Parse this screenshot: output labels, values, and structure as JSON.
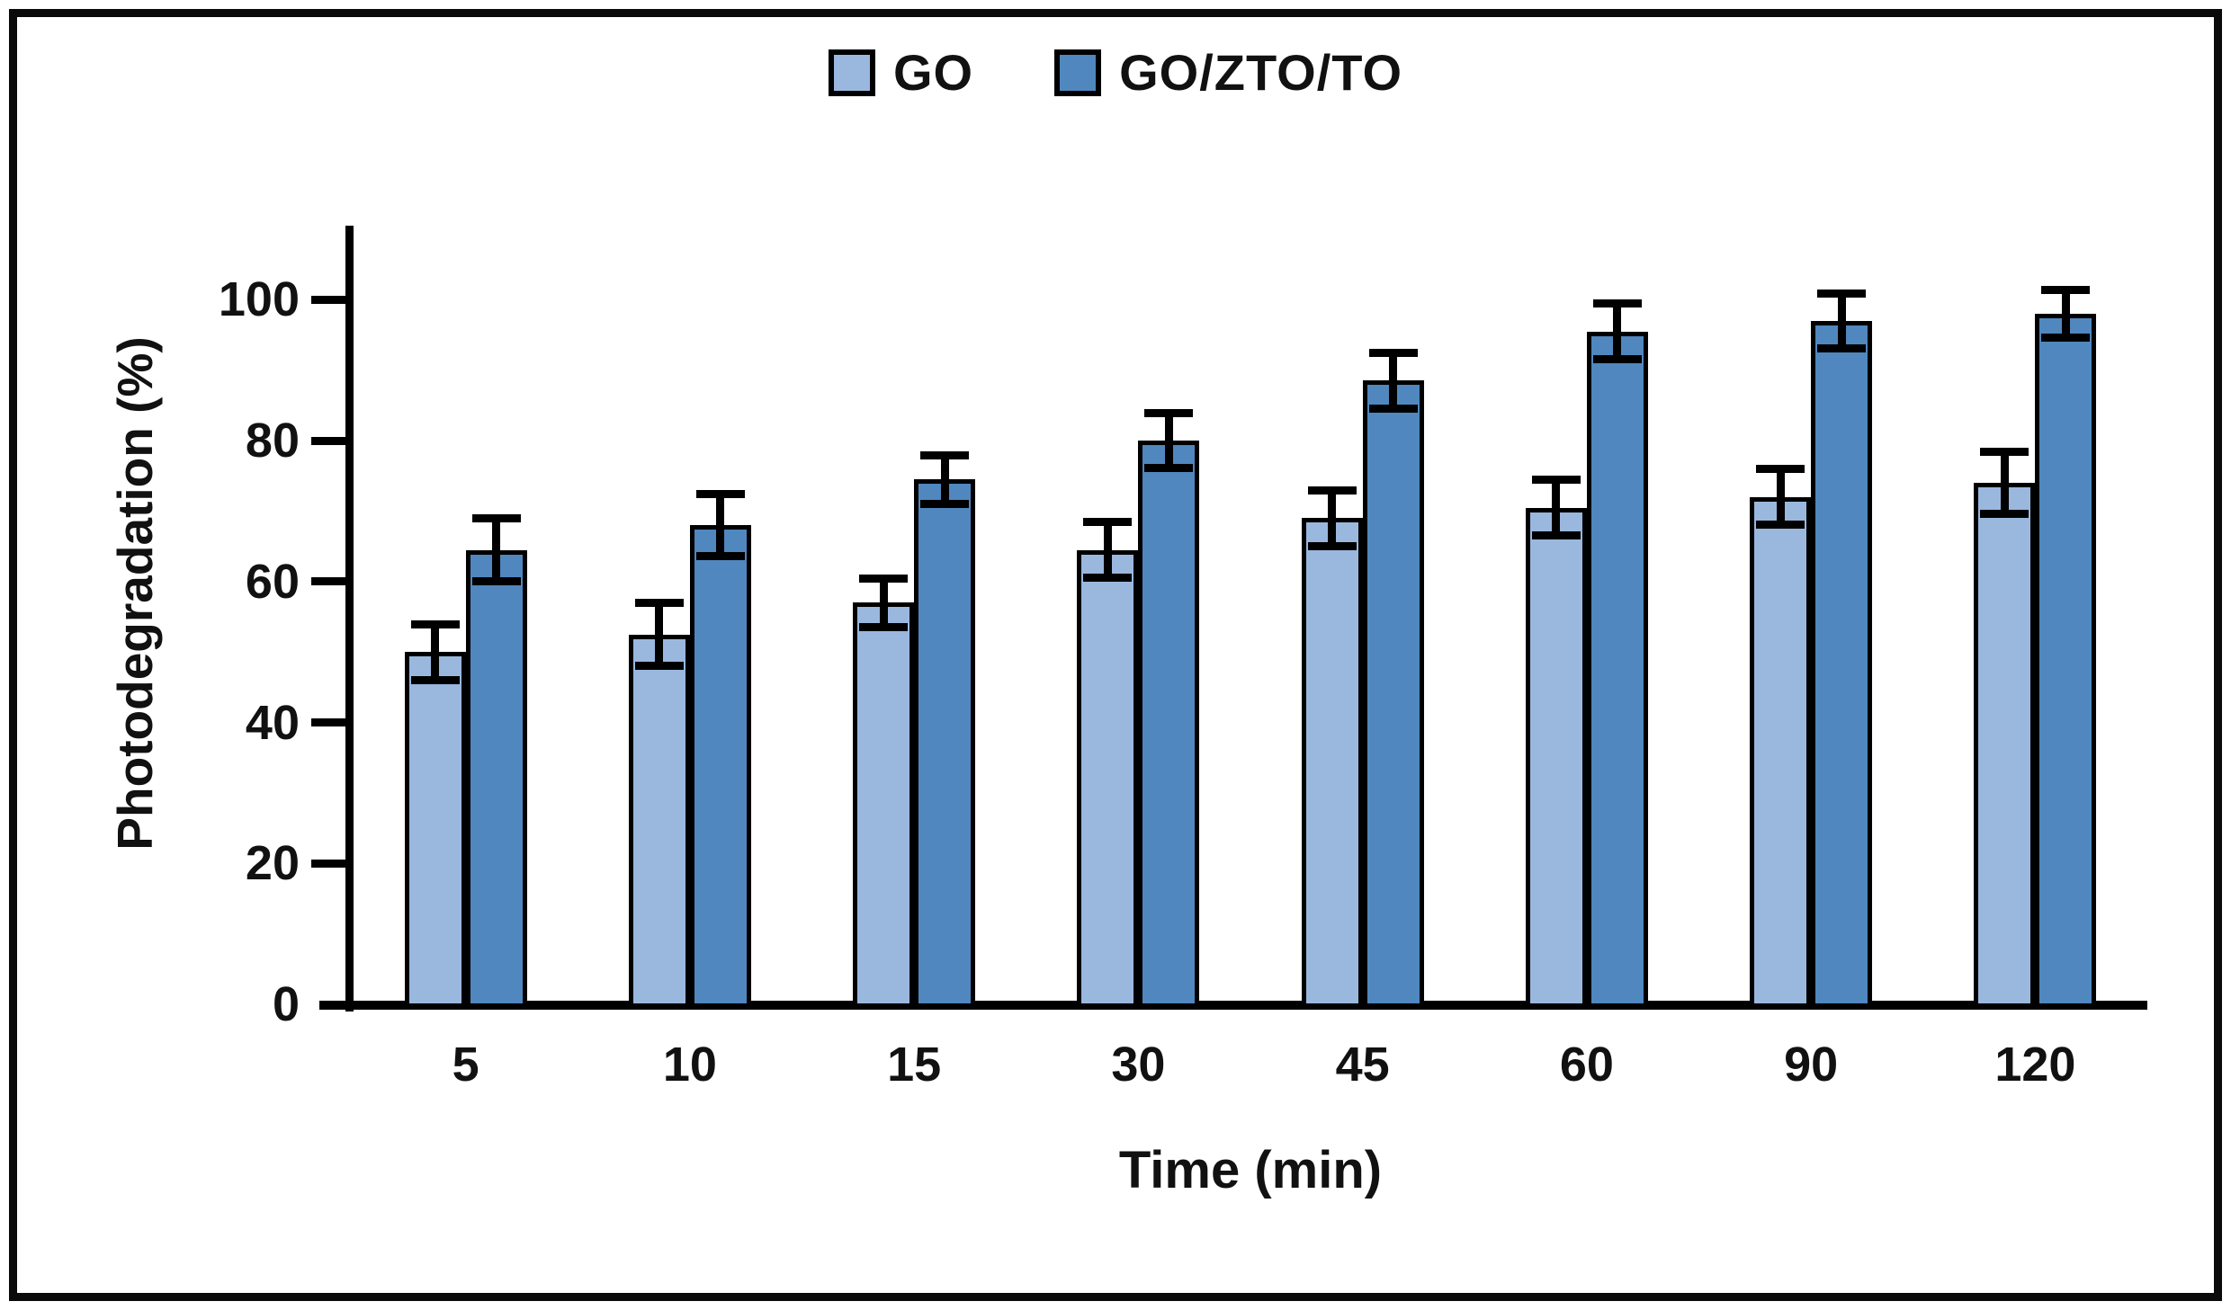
{
  "chart_data": {
    "type": "bar",
    "title": "",
    "categories": [
      "5",
      "10",
      "15",
      "30",
      "45",
      "60",
      "90",
      "120"
    ],
    "series": [
      {
        "name": "GO",
        "color": "#9AB8DE",
        "values": [
          50,
          52.5,
          57,
          64.5,
          69,
          70.5,
          72,
          74
        ],
        "errors": [
          4,
          4.5,
          3.5,
          4,
          4,
          4,
          4,
          4.5
        ]
      },
      {
        "name": "GO/ZTO/TO",
        "color": "#5087BE",
        "values": [
          64.5,
          68,
          74.5,
          80,
          88.5,
          95.5,
          97,
          98
        ],
        "errors": [
          4.5,
          4.5,
          3.5,
          4,
          4,
          4,
          4,
          3.5
        ]
      }
    ],
    "xlabel": "Time (min)",
    "ylabel": "Photodegradation  (%)",
    "ylim": [
      0,
      110
    ],
    "yticks": [
      0,
      20,
      40,
      60,
      80,
      100
    ],
    "grid": false,
    "legend_position": "top-center",
    "bar_outline_color": "#000000",
    "error_bar_color": "#000000",
    "axis_color": "#000000",
    "text_color": "#111111"
  }
}
